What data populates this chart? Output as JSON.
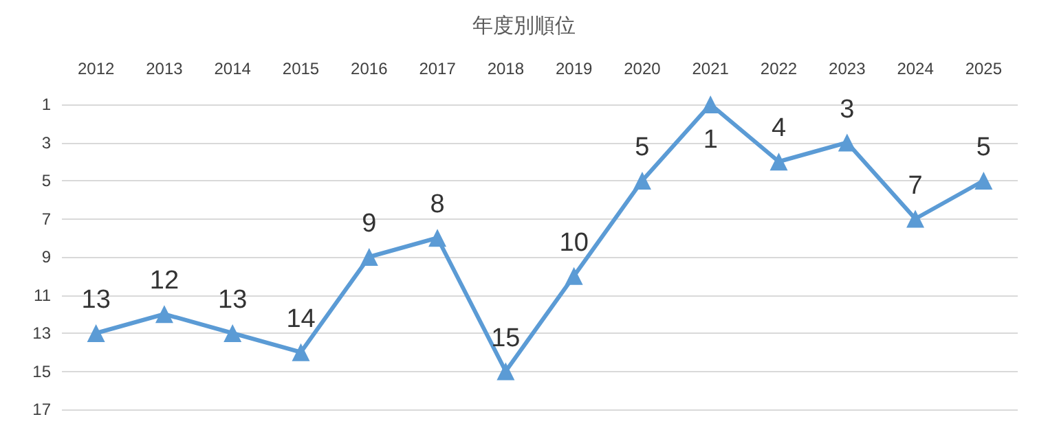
{
  "chart_data": {
    "type": "line",
    "title": "年度別順位",
    "categories": [
      "2012",
      "2013",
      "2014",
      "2015",
      "2016",
      "2017",
      "2018",
      "2019",
      "2020",
      "2021",
      "2022",
      "2023",
      "2024",
      "2025"
    ],
    "series": [
      {
        "color": "#5b9bd5",
        "values": [
          13,
          12,
          13,
          14,
          9,
          8,
          15,
          10,
          5,
          1,
          4,
          3,
          7,
          5
        ]
      }
    ],
    "ylim": [
      17,
      1
    ],
    "yticks": [
      1,
      3,
      5,
      7,
      9,
      11,
      13,
      15,
      17
    ],
    "grid": "y",
    "marker": "triangle",
    "line_style": "solid",
    "data_labels": true
  }
}
